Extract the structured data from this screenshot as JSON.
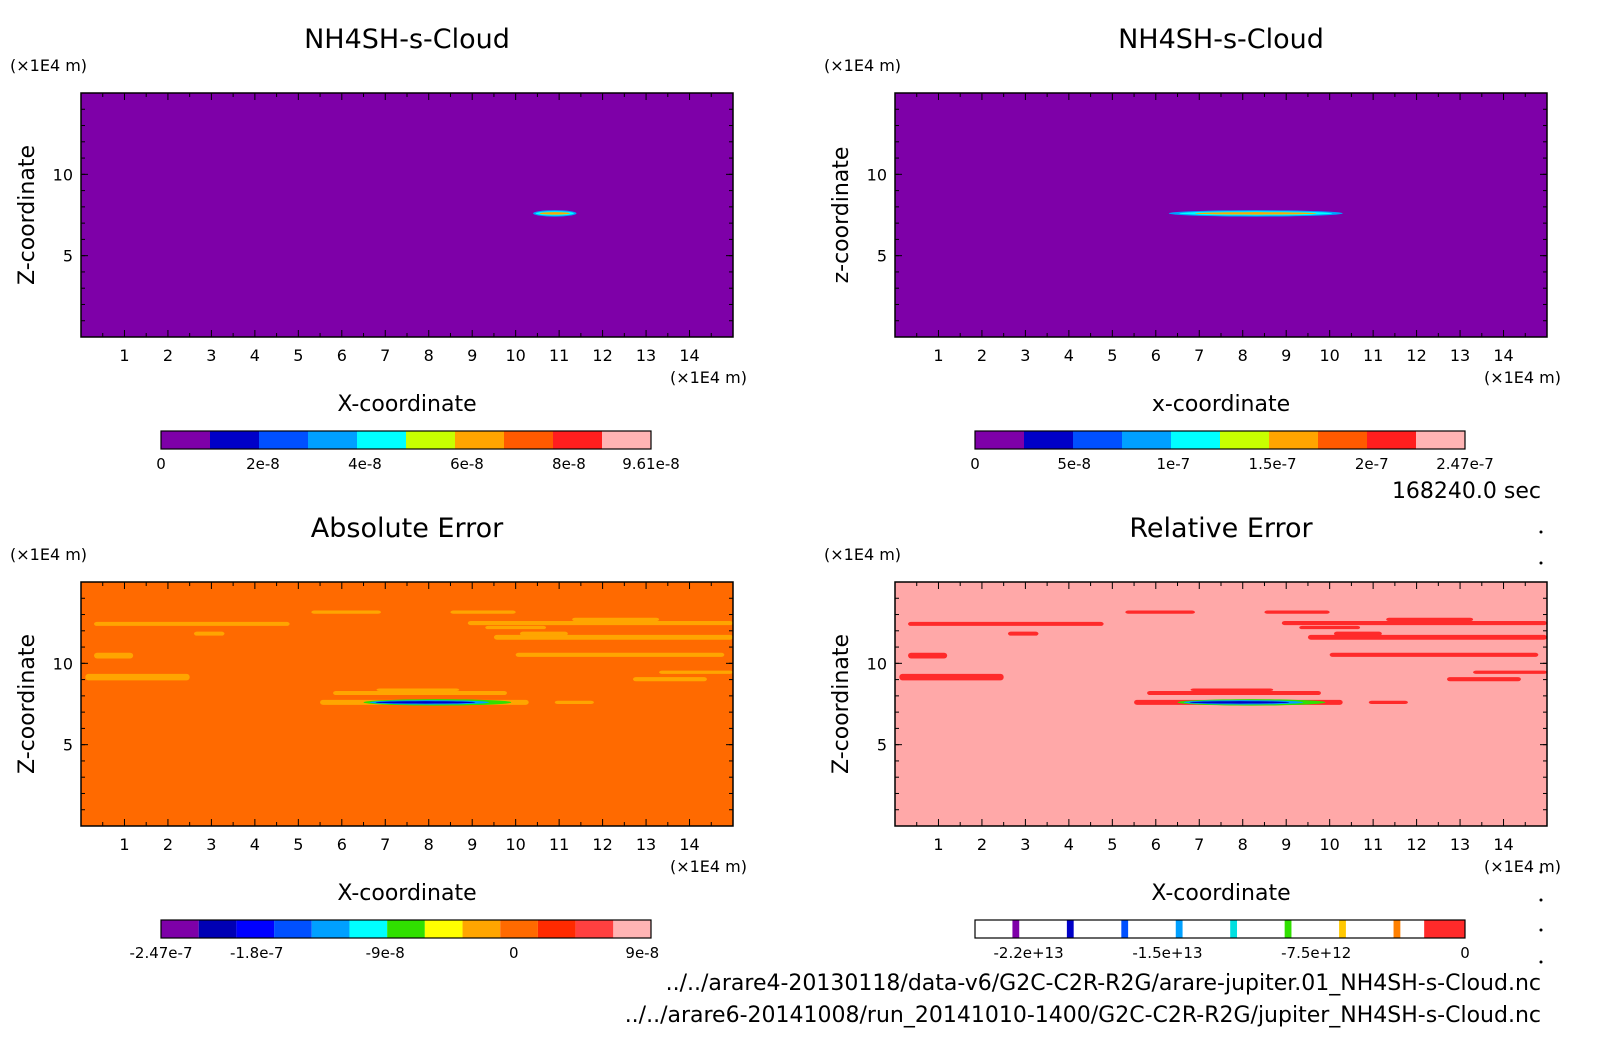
{
  "time_label": "168240.0 sec",
  "files": [
    "../../arare4-20130118/data-v6/G2C-C2R-R2G/arare-jupiter.01_NH4SH-s-Cloud.nc",
    "../../arare6-20141008/run_20141010-1400/G2C-C2R-R2G/jupiter_NH4SH-s-Cloud.nc"
  ],
  "colors": {
    "background": "#7e00a8",
    "orange": "#ff6a00",
    "pink": "#ffa8a8",
    "red": "#ff2a2a",
    "yellow_orange": "#ffa500"
  },
  "chart_data": [
    {
      "type": "heatmap",
      "title": "NH4SH-s-Cloud",
      "xlabel": "X-coordinate",
      "ylabel": "Z-coordinate",
      "x_unit": "(×1E4 m)",
      "y_unit": "(×1E4 m)",
      "x_ticks": [
        "1",
        "2",
        "3",
        "4",
        "5",
        "6",
        "7",
        "8",
        "9",
        "10",
        "11",
        "12",
        "13",
        "14"
      ],
      "y_ticks": [
        "5",
        "10"
      ],
      "xlim": [
        0,
        15
      ],
      "ylim": [
        0,
        15
      ],
      "colorbar": {
        "ticks": [
          "0",
          "2e-8",
          "4e-8",
          "6e-8",
          "8e-8",
          "9.61e-8"
        ],
        "max": 9.61e-08,
        "colors": [
          "#7e00a8",
          "#0000c8",
          "#0050ff",
          "#00a0ff",
          "#00ffff",
          "#c8ff00",
          "#ffa500",
          "#ff5a00",
          "#ff1e1e",
          "#ffb4b4"
        ]
      },
      "features": [
        {
          "kind": "cloud layer",
          "x_range": [
            10.4,
            11.4
          ],
          "z": 7.6
        }
      ]
    },
    {
      "type": "heatmap",
      "title": "NH4SH-s-Cloud",
      "xlabel": "x-coordinate",
      "ylabel": "z-coordinate",
      "x_unit": "(×1E4 m)",
      "y_unit": "(×1E4 m)",
      "x_ticks": [
        "1",
        "2",
        "3",
        "4",
        "5",
        "6",
        "7",
        "8",
        "9",
        "10",
        "11",
        "12",
        "13",
        "14"
      ],
      "y_ticks": [
        "5",
        "10"
      ],
      "xlim": [
        0,
        15
      ],
      "ylim": [
        0,
        15
      ],
      "colorbar": {
        "ticks": [
          "0",
          "5e-8",
          "1e-7",
          "1.5e-7",
          "2e-7",
          "2.47e-7"
        ],
        "max": 2.47e-07,
        "colors": [
          "#7e00a8",
          "#0000c8",
          "#0050ff",
          "#00a0ff",
          "#00ffff",
          "#c8ff00",
          "#ffa500",
          "#ff5a00",
          "#ff1e1e",
          "#ffb4b4"
        ]
      },
      "features": [
        {
          "kind": "cloud layer",
          "x_range": [
            6.3,
            10.3
          ],
          "z": 7.6
        }
      ]
    },
    {
      "type": "heatmap",
      "title": "Absolute Error",
      "xlabel": "X-coordinate",
      "ylabel": "Z-coordinate",
      "x_unit": "(×1E4 m)",
      "y_unit": "(×1E4 m)",
      "x_ticks": [
        "1",
        "2",
        "3",
        "4",
        "5",
        "6",
        "7",
        "8",
        "9",
        "10",
        "11",
        "12",
        "13",
        "14"
      ],
      "y_ticks": [
        "5",
        "10"
      ],
      "xlim": [
        0,
        15
      ],
      "ylim": [
        0,
        15
      ],
      "colorbar": {
        "ticks": [
          "-2.47e-7",
          "-1.8e-7",
          "-9e-8",
          "0",
          "9e-8"
        ],
        "min": -2.47e-07,
        "max": 9.61e-08,
        "colors": [
          "#7e00a8",
          "#0000b4",
          "#0000ff",
          "#0050ff",
          "#00a0ff",
          "#00ffff",
          "#30e000",
          "#ffff00",
          "#ffa500",
          "#ff6a00",
          "#ff2a00",
          "#ff4040",
          "#ffb4b4"
        ]
      },
      "features": [
        {
          "kind": "error band",
          "x_range": [
            5.5,
            10.3
          ],
          "z": 7.6
        },
        {
          "kind": "scattered bands",
          "z_range": [
            8.5,
            13.0
          ]
        }
      ]
    },
    {
      "type": "heatmap",
      "title": "Relative Error",
      "xlabel": "X-coordinate",
      "ylabel": "Z-coordinate",
      "x_unit": "(×1E4 m)",
      "y_unit": "(×1E4 m)",
      "x_ticks": [
        "1",
        "2",
        "3",
        "4",
        "5",
        "6",
        "7",
        "8",
        "9",
        "10",
        "11",
        "12",
        "13",
        "14"
      ],
      "y_ticks": [
        "5",
        "10"
      ],
      "xlim": [
        0,
        15
      ],
      "ylim": [
        0,
        15
      ],
      "colorbar": {
        "ticks": [
          "-2.2e+13",
          "-1.5e+13",
          "-7.5e+12",
          "0"
        ],
        "min": -24700000000000.0,
        "max": 0,
        "colors": [
          "#ffffff",
          "#7e00a8",
          "#ffffff",
          "#0000c8",
          "#ffffff",
          "#0050ff",
          "#ffffff",
          "#00a0ff",
          "#ffffff",
          "#00e0e0",
          "#ffffff",
          "#30e000",
          "#ffffff",
          "#ffc800",
          "#ffffff",
          "#ff8000",
          "#ffffff",
          "#ff2a2a"
        ]
      },
      "features": [
        {
          "kind": "error band",
          "x_range": [
            5.5,
            10.3
          ],
          "z": 7.6
        },
        {
          "kind": "scattered bands",
          "z_range": [
            8.5,
            13.0
          ]
        }
      ]
    }
  ]
}
